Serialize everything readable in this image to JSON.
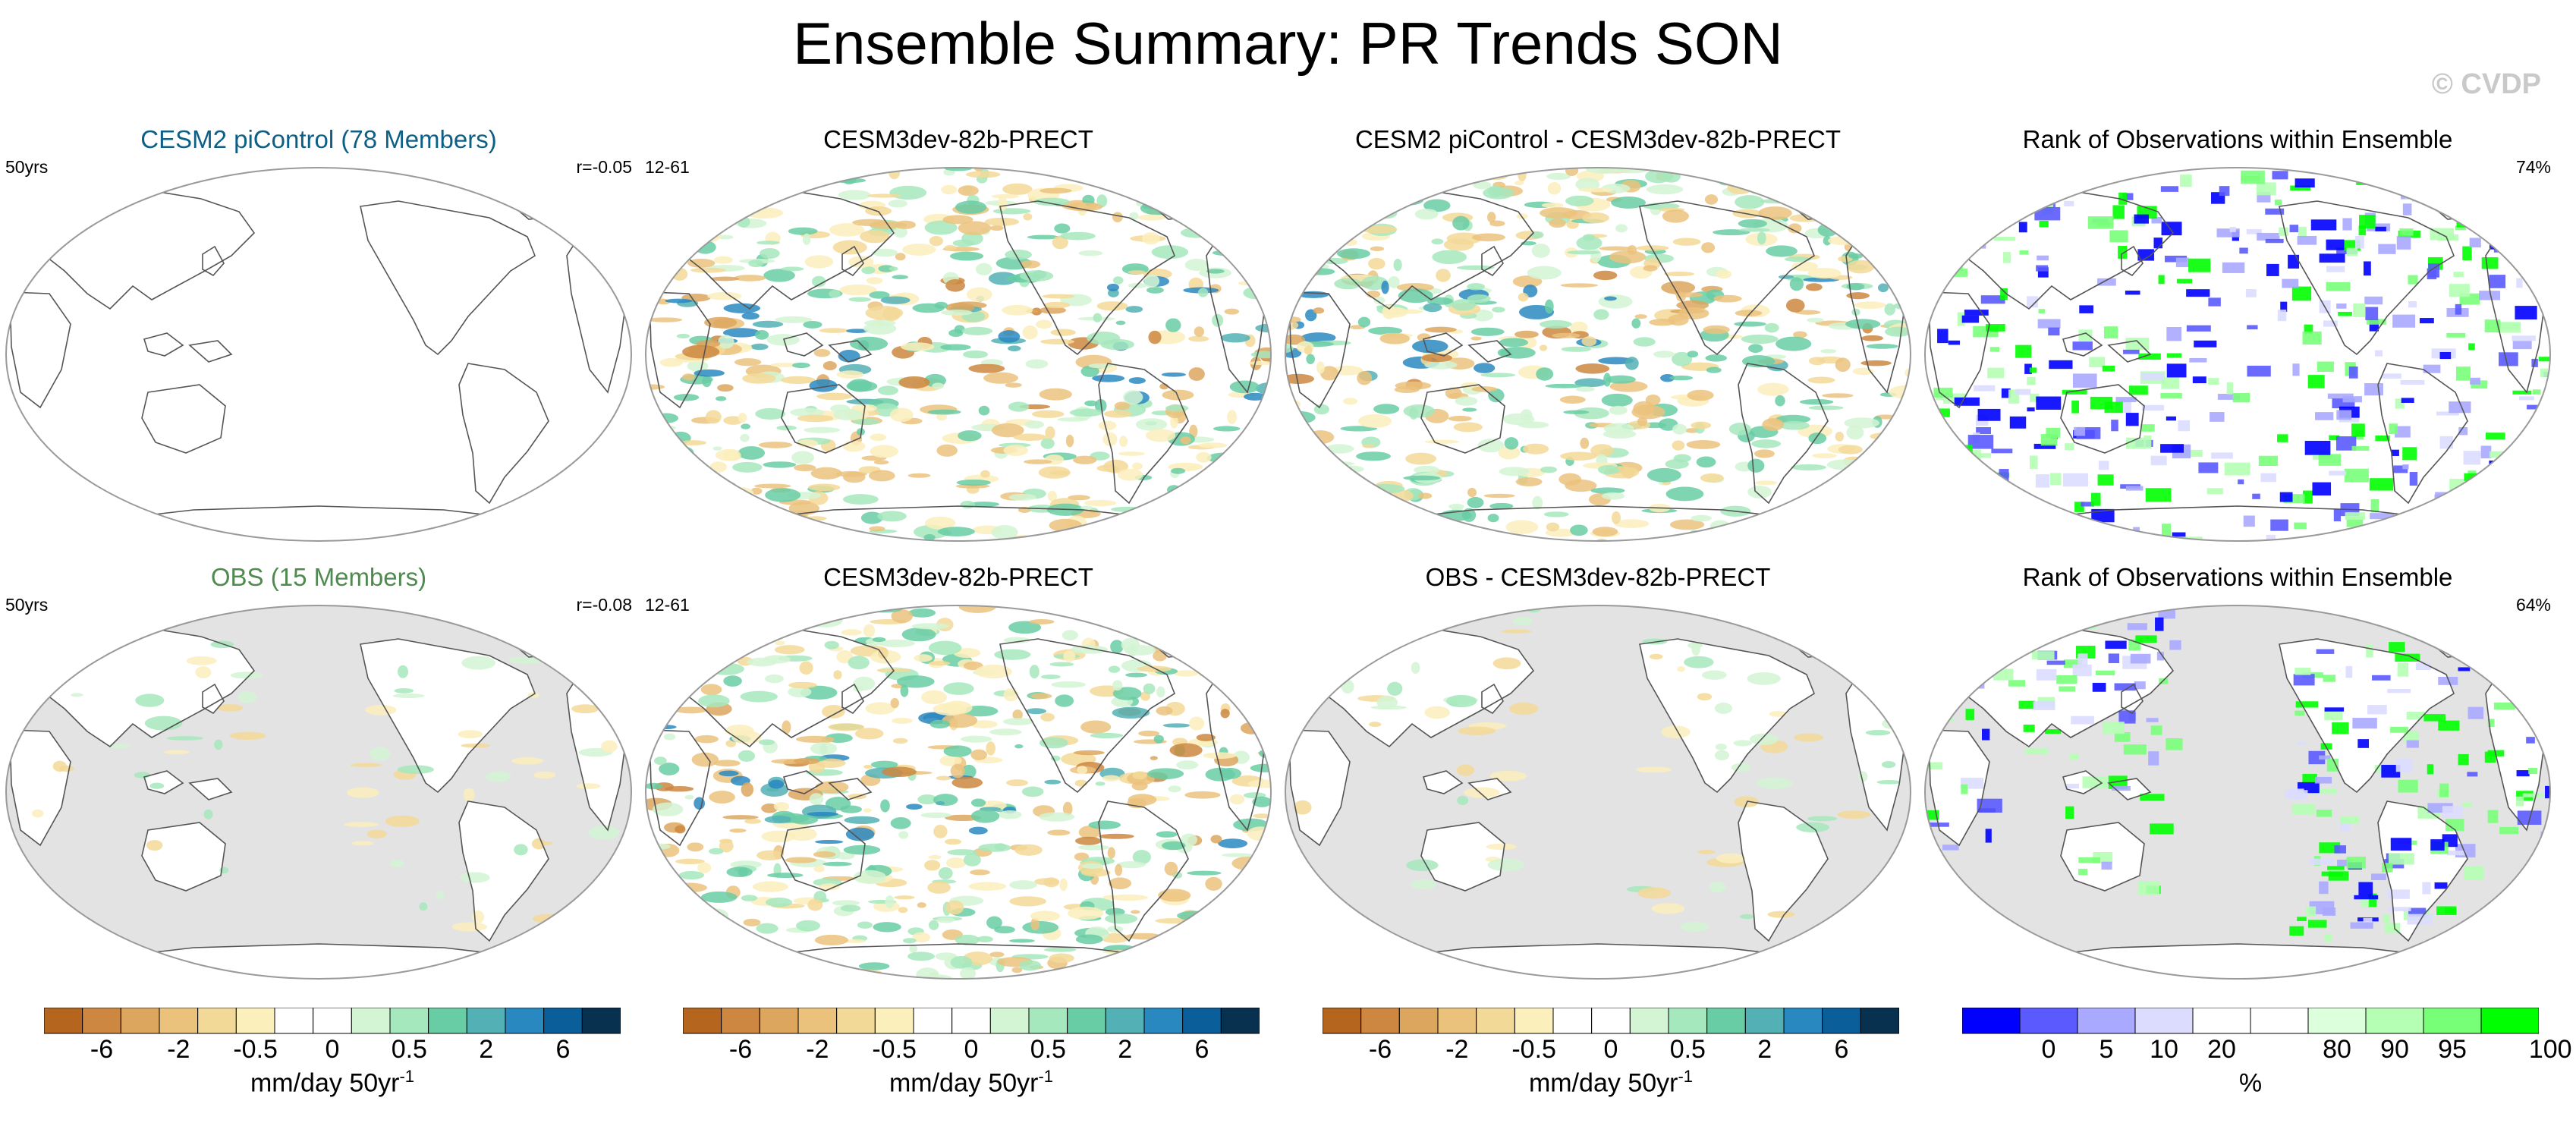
{
  "title": "Ensemble Summary: PR Trends SON",
  "copyright": "© CVDP",
  "colors": {
    "model_title": "#0e5f86",
    "obs_title": "#4f8a4f",
    "land_gray": "#e3e3e3",
    "coast": "#555555"
  },
  "panels": [
    {
      "title": "CESM2 piControl (78 Members)",
      "left_label": "50yrs",
      "right_label": "r=-0.05",
      "field": "empty",
      "mask": false
    },
    {
      "title": "CESM3dev-82b-PRECT",
      "left_label": "12-61",
      "right_label": "",
      "field": "trend",
      "mask": false
    },
    {
      "title": "CESM2 piControl - CESM3dev-82b-PRECT",
      "left_label": "",
      "right_label": "",
      "field": "trend",
      "mask": false
    },
    {
      "title": "Rank of Observations within Ensemble",
      "left_label": "",
      "right_label": "74%",
      "field": "rank",
      "mask": false
    },
    {
      "title": "OBS (15 Members)",
      "left_label": "50yrs",
      "right_label": "r=-0.08",
      "field": "trend-weak",
      "mask": true
    },
    {
      "title": "CESM3dev-82b-PRECT",
      "left_label": "12-61",
      "right_label": "",
      "field": "trend",
      "mask": false
    },
    {
      "title": "OBS - CESM3dev-82b-PRECT",
      "left_label": "",
      "right_label": "",
      "field": "trend-weak",
      "mask": true
    },
    {
      "title": "Rank of Observations within Ensemble",
      "left_label": "",
      "right_label": "64%",
      "field": "rank",
      "mask": true
    }
  ],
  "colorbars": [
    {
      "colors": [
        "#b5651d",
        "#cd8740",
        "#dca65e",
        "#ebc27c",
        "#f3d998",
        "#fbefbc",
        "#ffffff",
        "#ffffff",
        "#d3f5d3",
        "#a6e8bd",
        "#68cca5",
        "#53b0b5",
        "#2a88c1",
        "#0a5f9a",
        "#08304f"
      ],
      "ticks": [
        "-6",
        "-2",
        "-0.5",
        "0",
        "0.5",
        "2",
        "6"
      ],
      "tick_boundaries": [
        1,
        3,
        5,
        7,
        9,
        11,
        13
      ],
      "unit": "mm/day 50yr",
      "unit_sup": "-1"
    },
    {
      "colors": [
        "#b5651d",
        "#cd8740",
        "#dca65e",
        "#ebc27c",
        "#f3d998",
        "#fbefbc",
        "#ffffff",
        "#ffffff",
        "#d3f5d3",
        "#a6e8bd",
        "#68cca5",
        "#53b0b5",
        "#2a88c1",
        "#0a5f9a",
        "#08304f"
      ],
      "ticks": [
        "-6",
        "-2",
        "-0.5",
        "0",
        "0.5",
        "2",
        "6"
      ],
      "tick_boundaries": [
        1,
        3,
        5,
        7,
        9,
        11,
        13
      ],
      "unit": "mm/day 50yr",
      "unit_sup": "-1"
    },
    {
      "colors": [
        "#b5651d",
        "#cd8740",
        "#dca65e",
        "#ebc27c",
        "#f3d998",
        "#fbefbc",
        "#ffffff",
        "#ffffff",
        "#d3f5d3",
        "#a6e8bd",
        "#68cca5",
        "#53b0b5",
        "#2a88c1",
        "#0a5f9a",
        "#08304f"
      ],
      "ticks": [
        "-6",
        "-2",
        "-0.5",
        "0",
        "0.5",
        "2",
        "6"
      ],
      "tick_boundaries": [
        1,
        3,
        5,
        7,
        9,
        11,
        13
      ],
      "unit": "mm/day 50yr",
      "unit_sup": "-1"
    },
    {
      "colors": [
        "#0000ff",
        "#5a5aff",
        "#a9a9ff",
        "#dcdcff",
        "#ffffff",
        "#ffffff",
        "#dcffdc",
        "#b4ffb4",
        "#78ff78",
        "#00ff00"
      ],
      "ticks": [
        "0",
        "5",
        "10",
        "20",
        "80",
        "90",
        "95",
        "100"
      ],
      "tick_boundaries": [
        1,
        2,
        3,
        4,
        6,
        7,
        8,
        9.7
      ],
      "unit": "%",
      "unit_sup": ""
    }
  ],
  "chart_data": [
    {
      "type": "heatmap",
      "title": "CESM2 piControl (78 Members)",
      "label": "50yrs",
      "stat": "r=-0.05",
      "field": "trend"
    },
    {
      "type": "heatmap",
      "title": "CESM3dev-82b-PRECT",
      "label": "12-61",
      "field": "trend"
    },
    {
      "type": "heatmap",
      "title": "CESM2 piControl - CESM3dev-82b-PRECT",
      "field": "trend difference"
    },
    {
      "type": "heatmap",
      "title": "Rank of Observations within Ensemble",
      "stat": "74%",
      "field": "rank"
    },
    {
      "type": "heatmap",
      "title": "OBS (15 Members)",
      "label": "50yrs",
      "stat": "r=-0.08",
      "field": "trend"
    },
    {
      "type": "heatmap",
      "title": "CESM3dev-82b-PRECT",
      "label": "12-61",
      "field": "trend"
    },
    {
      "type": "heatmap",
      "title": "OBS - CESM3dev-82b-PRECT",
      "field": "trend difference"
    },
    {
      "type": "heatmap",
      "title": "Rank of Observations within Ensemble",
      "stat": "64%",
      "field": "rank"
    }
  ]
}
